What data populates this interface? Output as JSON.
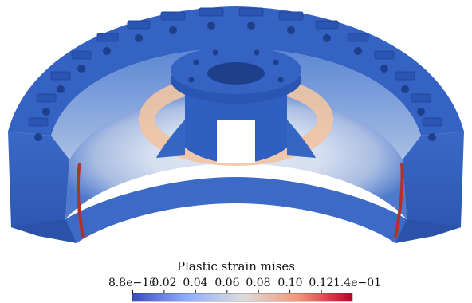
{
  "colorbar": {
    "title": "Plastic strain mises",
    "tick_labels": [
      "8.8e−16",
      "0.02",
      "0.04",
      "0.06",
      "0.08",
      "0.10",
      "0.12",
      "1.4e−01"
    ],
    "colormap_stops": [
      "#3b4cc0",
      "#8fb0fe",
      "#dddcdc",
      "#f4987a",
      "#b40426"
    ]
  },
  "colors": {
    "part_base": "#2f5fc0",
    "part_dark": "#23489c",
    "part_light": "#cfd9ec",
    "strain_band": "#f0c6a6",
    "high_strain": "#b1322a"
  }
}
